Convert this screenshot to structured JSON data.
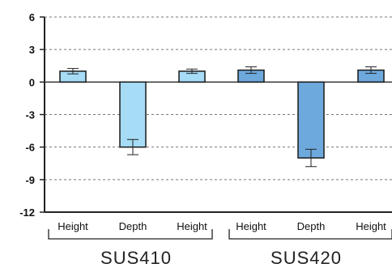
{
  "chart_data": {
    "type": "bar",
    "ylim": [
      -12,
      6
    ],
    "yticks": [
      6,
      3,
      0,
      -3,
      -6,
      -9,
      -12
    ],
    "grid": "horizontal-dashed",
    "categories": [
      "Height",
      "Depth",
      "Height",
      "Height",
      "Depth",
      "Height"
    ],
    "values": [
      1.0,
      -6.0,
      1.0,
      1.1,
      -7.0,
      1.1
    ],
    "errors": [
      0.25,
      0.7,
      0.2,
      0.3,
      0.8,
      0.3
    ],
    "groups": [
      {
        "label": "SUS410",
        "members": [
          0,
          1,
          2
        ],
        "color": "#a6dcf5"
      },
      {
        "label": "SUS420",
        "members": [
          3,
          4,
          5
        ],
        "color": "#6ea9dd"
      }
    ]
  }
}
